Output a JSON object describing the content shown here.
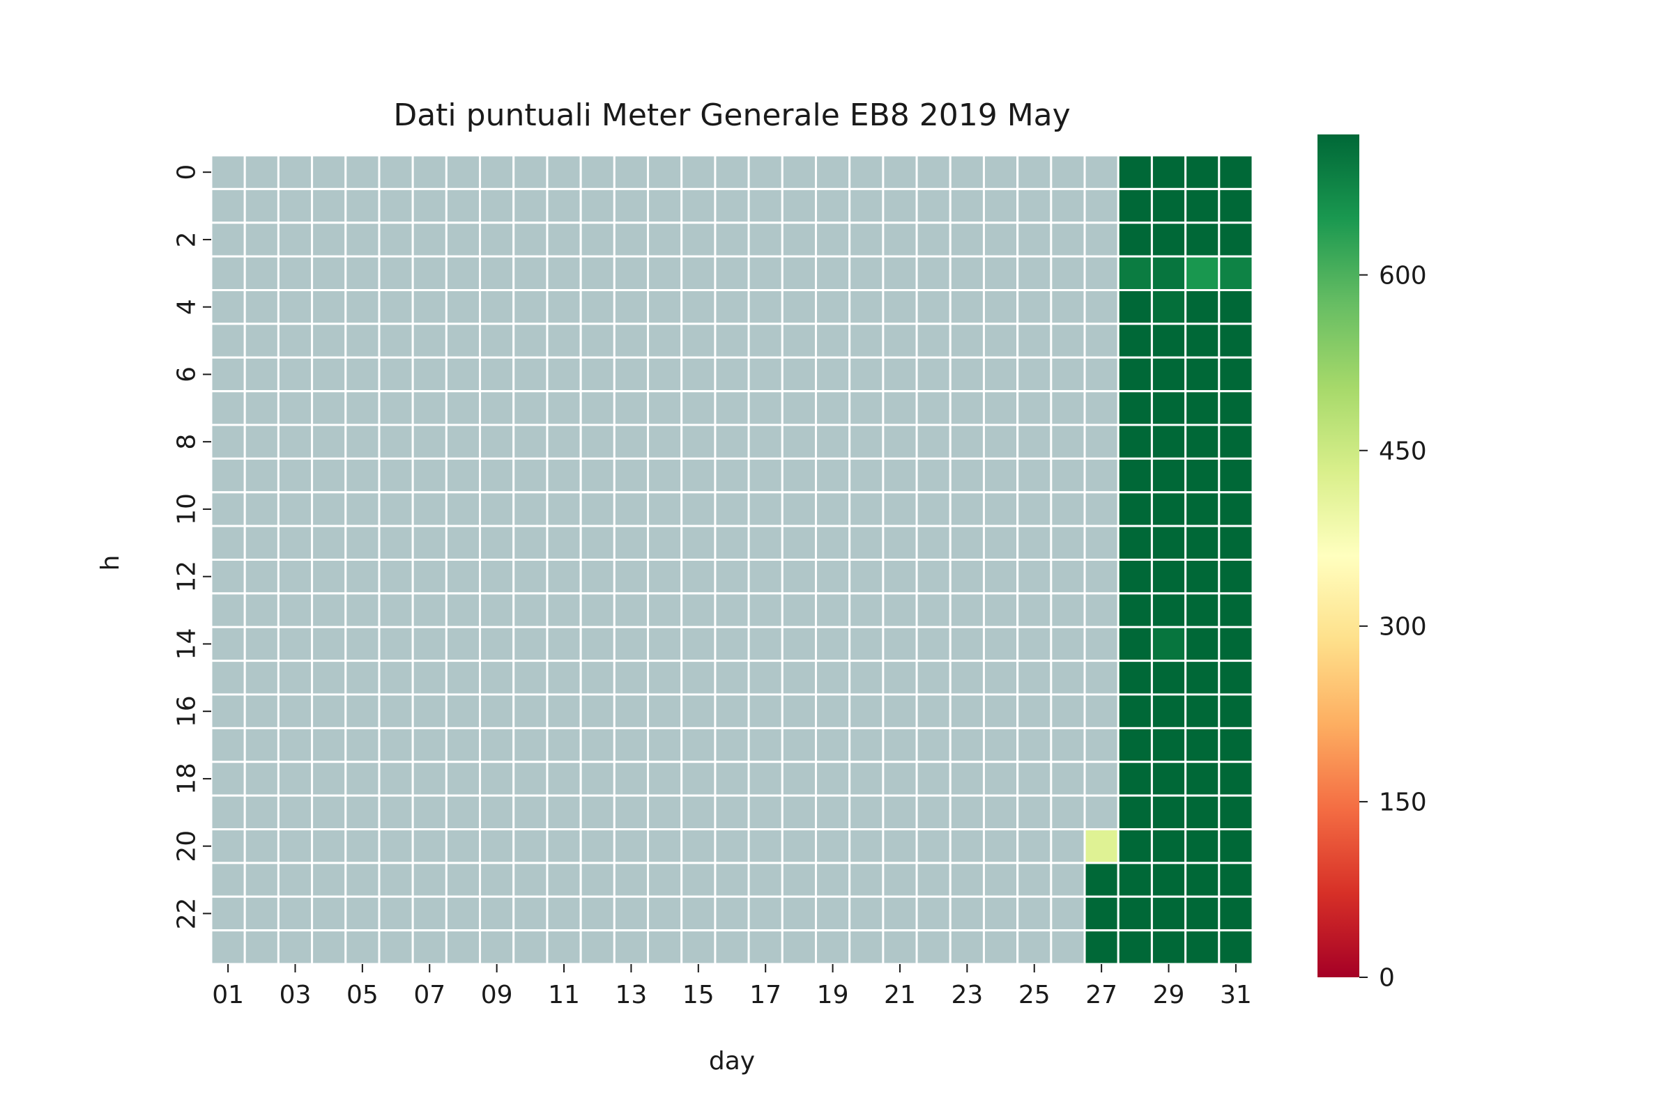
{
  "chart_data": {
    "type": "heatmap",
    "title": "Dati puntuali Meter Generale EB8 2019 May",
    "xlabel": "day",
    "ylabel": "h",
    "x_categories": [
      "01",
      "02",
      "03",
      "04",
      "05",
      "06",
      "07",
      "08",
      "09",
      "10",
      "11",
      "12",
      "13",
      "14",
      "15",
      "16",
      "17",
      "18",
      "19",
      "20",
      "21",
      "22",
      "23",
      "24",
      "25",
      "26",
      "27",
      "28",
      "29",
      "30",
      "31"
    ],
    "x_tick_labels_shown": [
      "01",
      "03",
      "05",
      "07",
      "09",
      "11",
      "13",
      "15",
      "17",
      "19",
      "21",
      "23",
      "25",
      "27",
      "29",
      "31"
    ],
    "y_categories": [
      0,
      1,
      2,
      3,
      4,
      5,
      6,
      7,
      8,
      9,
      10,
      11,
      12,
      13,
      14,
      15,
      16,
      17,
      18,
      19,
      20,
      21,
      22,
      23
    ],
    "y_tick_labels_shown": [
      "0",
      "2",
      "4",
      "6",
      "8",
      "10",
      "12",
      "14",
      "16",
      "18",
      "20",
      "22"
    ],
    "missing_color": "#b0c6c8",
    "colormap": "RdYlGn",
    "colorbar": {
      "vmin": 0,
      "vmax": 720,
      "ticks": [
        0,
        150,
        300,
        450,
        600
      ]
    },
    "values_note_days_01_to_26": null,
    "columns": [
      {
        "day": "27",
        "values": [
          null,
          null,
          null,
          null,
          null,
          null,
          null,
          null,
          null,
          null,
          null,
          null,
          null,
          null,
          null,
          null,
          null,
          null,
          null,
          null,
          420,
          720,
          720,
          720
        ]
      },
      {
        "day": "28",
        "values": [
          720,
          720,
          720,
          690,
          720,
          720,
          720,
          720,
          720,
          720,
          720,
          720,
          720,
          720,
          720,
          720,
          720,
          720,
          720,
          720,
          720,
          720,
          720,
          720
        ]
      },
      {
        "day": "29",
        "values": [
          720,
          720,
          720,
          700,
          710,
          720,
          720,
          720,
          720,
          720,
          720,
          720,
          720,
          720,
          700,
          720,
          720,
          720,
          720,
          720,
          720,
          720,
          720,
          720
        ]
      },
      {
        "day": "30",
        "values": [
          720,
          720,
          720,
          650,
          720,
          720,
          720,
          720,
          720,
          720,
          720,
          720,
          720,
          720,
          720,
          720,
          720,
          720,
          720,
          720,
          720,
          720,
          720,
          720
        ]
      },
      {
        "day": "31",
        "values": [
          720,
          720,
          720,
          680,
          720,
          720,
          720,
          720,
          720,
          720,
          720,
          720,
          720,
          720,
          720,
          720,
          720,
          720,
          720,
          720,
          720,
          720,
          720,
          720
        ]
      }
    ]
  }
}
